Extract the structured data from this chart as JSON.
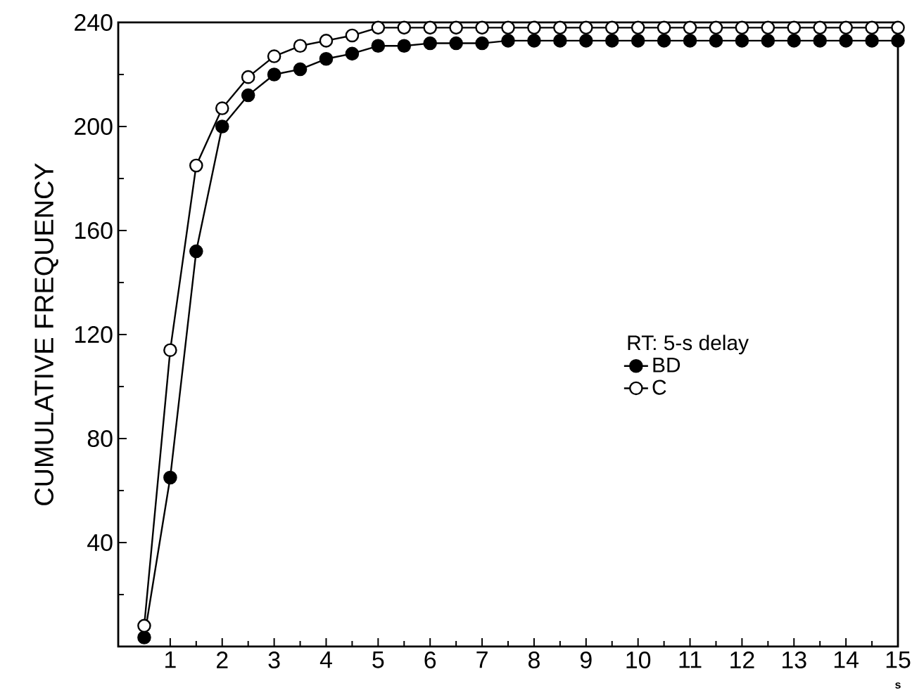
{
  "chart_data": {
    "type": "line",
    "xlabel": "s",
    "ylabel": "CUMULATIVE   FREQUENCY",
    "legend_title": "RT: 5-s delay",
    "x": [
      0.5,
      1,
      1.5,
      2,
      2.5,
      3,
      3.5,
      4,
      4.5,
      5,
      5.5,
      6,
      6.5,
      7,
      7.5,
      8,
      8.5,
      9,
      9.5,
      10,
      10.5,
      11,
      11.5,
      12,
      12.5,
      13,
      13.5,
      14,
      14.5,
      15
    ],
    "series": [
      {
        "name": "BD",
        "color": "#000000",
        "values": [
          3.5,
          65,
          152,
          200,
          212,
          220,
          222,
          226,
          228,
          231,
          231,
          232,
          232,
          232,
          233,
          233,
          233,
          233,
          233,
          233,
          233,
          233,
          233,
          233,
          233,
          233,
          233,
          233,
          233,
          233
        ]
      },
      {
        "name": "C",
        "color": "#000000",
        "values": [
          8,
          114,
          185,
          207,
          219,
          227,
          231,
          233,
          235,
          238,
          238,
          238,
          238,
          238,
          238,
          238,
          238,
          238,
          238,
          238,
          238,
          238,
          238,
          238,
          238,
          238,
          238,
          238,
          238,
          238
        ]
      }
    ],
    "xlim": [
      0,
      15
    ],
    "ylim": [
      0,
      240
    ],
    "xticks": [
      1,
      2,
      3,
      4,
      5,
      6,
      7,
      8,
      9,
      10,
      11,
      12,
      13,
      14,
      15
    ],
    "yticks": [
      {
        "value": 0,
        "label": null
      },
      40,
      80,
      120,
      160,
      200,
      240
    ],
    "grid": false,
    "legend": "right",
    "marker": "circle",
    "line_style": "solid"
  }
}
